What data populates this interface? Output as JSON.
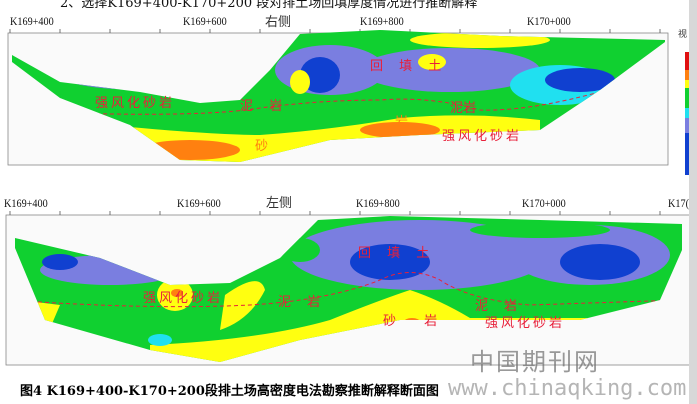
{
  "top_text": "2、选择K169+400-K170+200 段对排土场回填厚度情况进行推断解释",
  "upper_section": {
    "side": "右侧",
    "stations": [
      "K169+400",
      "K169+600",
      "K169+800",
      "K170+000"
    ],
    "labels": {
      "fill": "回 填 土",
      "weathered_left": "强风化砂岩",
      "mudstone_left": "泥 岩",
      "mudstone_right": "泥岩",
      "sandstone_a": "砂",
      "sandstone_b": "岩",
      "weathered_right": "强风化砂岩"
    }
  },
  "lower_section": {
    "side": "左侧",
    "stations": [
      "K169+400",
      "K169+600",
      "K169+800",
      "K170+000",
      "K17("
    ],
    "labels": {
      "fill": "回 填 土",
      "weathered_left": "强风化砂岩",
      "mudstone_left": "泥 岩",
      "mudstone_right": "泥 岩",
      "sandstone": "砂 岩",
      "weathered_right": "强风化砂岩"
    }
  },
  "colorbar": {
    "label": "视 (欧"
  },
  "colors": {
    "red": "#e8203a",
    "blue": "#1040d0",
    "periwinkle": "#7a7ee0",
    "cyan": "#20e0f0",
    "green": "#10d030",
    "yellow": "#ffff10",
    "orange": "#ff8010"
  },
  "caption": "图4  K169+400-K170+200段排土场高密度电法勘察推断解释断面图",
  "watermarks": {
    "url": "www.chinaqking.com",
    "cn": "中国期刊网"
  }
}
